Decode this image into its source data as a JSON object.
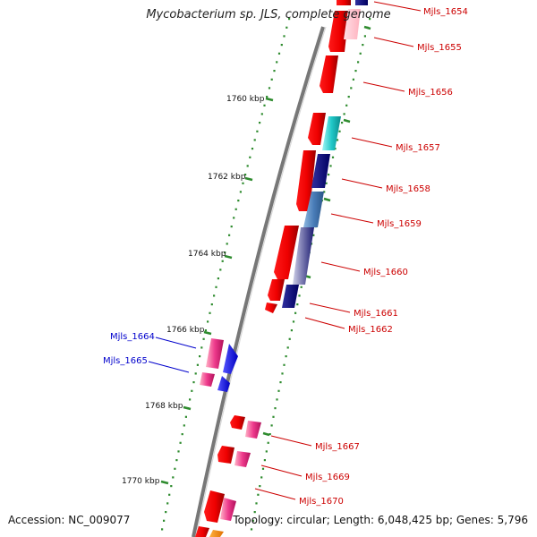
{
  "title": "Mycobacterium sp. JLS, complete genome",
  "footer": {
    "accession": "Accession: NC_009077",
    "stats": "Topology: circular; Length: 6,048,425 bp; Genes: 5,796"
  },
  "colors": {
    "backbone": "#888888",
    "tick": "#2e8b2e",
    "label_red": "#cc0000",
    "label_blue": "#0000cc"
  },
  "ticks": [
    {
      "label": "1760 kbp"
    },
    {
      "label": "1762 kbp"
    },
    {
      "label": "1764 kbp"
    },
    {
      "label": "1766 kbp"
    },
    {
      "label": "1768 kbp"
    },
    {
      "label": "1770 kbp"
    }
  ],
  "gene_labels": [
    {
      "text": "Mjls_1654",
      "color": "red"
    },
    {
      "text": "Mjls_1655",
      "color": "red"
    },
    {
      "text": "Mjls_1656",
      "color": "red"
    },
    {
      "text": "Mjls_1657",
      "color": "red"
    },
    {
      "text": "Mjls_1658",
      "color": "red"
    },
    {
      "text": "Mjls_1659",
      "color": "red"
    },
    {
      "text": "Mjls_1660",
      "color": "red"
    },
    {
      "text": "Mjls_1661",
      "color": "red"
    },
    {
      "text": "Mjls_1662",
      "color": "red"
    },
    {
      "text": "Mjls_1664",
      "color": "blue"
    },
    {
      "text": "Mjls_1665",
      "color": "blue"
    },
    {
      "text": "Mjls_1667",
      "color": "red"
    },
    {
      "text": "Mjls_1669",
      "color": "red"
    },
    {
      "text": "Mjls_1670",
      "color": "red"
    }
  ]
}
